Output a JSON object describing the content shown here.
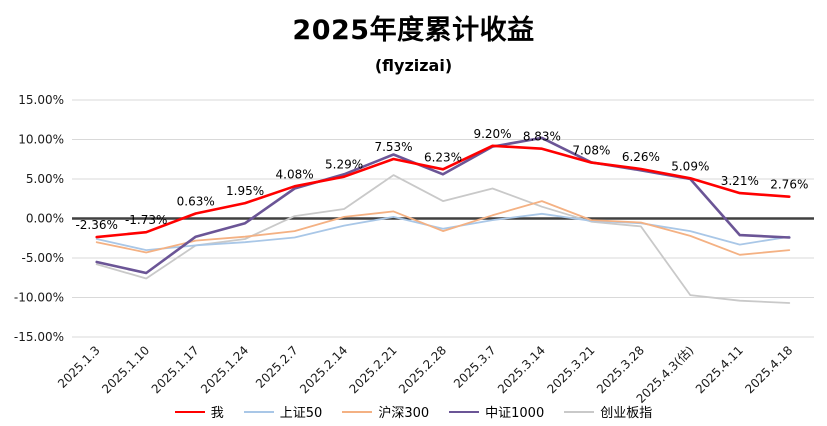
{
  "title": "2025年度累计收益",
  "subtitle": "(flyzizai)",
  "chart_data": {
    "type": "line",
    "title": "2025年度累计收益",
    "subtitle": "(flyzizai)",
    "xlabel": "",
    "ylabel": "",
    "grid": true,
    "legend_position": "bottom",
    "ylim": [
      -15,
      15
    ],
    "ytick_step": 5,
    "ytick_labels": [
      "15.00%",
      "10.00%",
      "5.00%",
      "0.00%",
      "-5.00%",
      "-10.00%",
      "-15.00%"
    ],
    "categories": [
      "2025.1.3",
      "2025.1.10",
      "2025.1.17",
      "2025.1.24",
      "2025.2.7",
      "2025.2.14",
      "2025.2.21",
      "2025.2.28",
      "2025.3.7",
      "2025.3.14",
      "2025.3.21",
      "2025.3.28",
      "2025.4.3(估)",
      "2025.4.11",
      "2025.4.18"
    ],
    "series": [
      {
        "name": "我",
        "color": "#FF0000",
        "line_width": 2.6,
        "show_labels": true,
        "values": [
          -2.36,
          -1.73,
          0.63,
          1.95,
          4.08,
          5.29,
          7.53,
          6.23,
          9.2,
          8.83,
          7.08,
          6.26,
          5.09,
          3.21,
          2.76
        ]
      },
      {
        "name": "上证50",
        "color": "#A9C7E7",
        "line_width": 1.8,
        "show_labels": false,
        "values": [
          -2.6,
          -4.0,
          -3.4,
          -3.0,
          -2.4,
          -0.9,
          0.2,
          -1.3,
          -0.2,
          0.6,
          -0.3,
          -0.6,
          -1.6,
          -3.3,
          -2.3
        ]
      },
      {
        "name": "沪深300",
        "color": "#F4B183",
        "line_width": 1.8,
        "show_labels": false,
        "values": [
          -3.0,
          -4.3,
          -2.8,
          -2.3,
          -1.6,
          0.2,
          0.9,
          -1.6,
          0.4,
          2.2,
          -0.2,
          -0.5,
          -2.2,
          -4.6,
          -4.0
        ]
      },
      {
        "name": "中证1000",
        "color": "#6B5596",
        "line_width": 2.6,
        "show_labels": false,
        "values": [
          -5.5,
          -6.9,
          -2.3,
          -0.6,
          3.8,
          5.6,
          8.1,
          5.6,
          9.1,
          10.2,
          7.1,
          6.1,
          5.0,
          -2.1,
          -2.4
        ]
      },
      {
        "name": "创业板指",
        "color": "#C9C9C9",
        "line_width": 1.8,
        "show_labels": false,
        "values": [
          -5.8,
          -7.6,
          -3.4,
          -2.6,
          0.3,
          1.2,
          5.5,
          2.2,
          3.8,
          1.5,
          -0.4,
          -1.0,
          -9.7,
          -10.4,
          -10.7
        ]
      }
    ]
  }
}
